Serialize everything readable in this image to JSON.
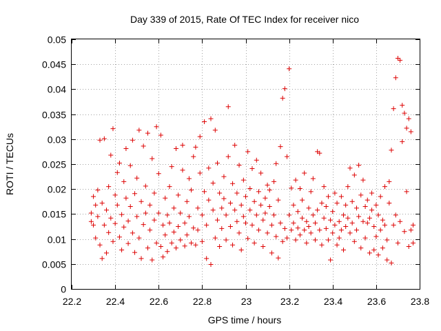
{
  "chart_data": {
    "type": "scatter",
    "title": "Day 339 of 2015, Rate Of TEC Index for receiver nico",
    "xlabel": "GPS time / hours",
    "ylabel": "ROTI / TECUs",
    "xlim": [
      22.2,
      23.8
    ],
    "ylim": [
      0,
      0.05
    ],
    "xticks": [
      "22.2",
      "22.4",
      "22.6",
      "22.8",
      "23",
      "23.2",
      "23.4",
      "23.6",
      "23.8"
    ],
    "yticks": [
      "0",
      "0.005",
      "0.01",
      "0.015",
      "0.02",
      "0.025",
      "0.03",
      "0.035",
      "0.04",
      "0.045",
      "0.05"
    ],
    "grid": true,
    "marker": "plus",
    "color": "#dd0000",
    "series": [
      {
        "values": [
          [
            22.29,
            0.0152
          ],
          [
            22.29,
            0.0135
          ],
          [
            22.3,
            0.0185
          ],
          [
            22.3,
            0.0128
          ],
          [
            22.31,
            0.0168
          ],
          [
            22.31,
            0.0102
          ],
          [
            22.32,
            0.0198
          ],
          [
            22.32,
            0.0145
          ],
          [
            22.33,
            0.0088
          ],
          [
            22.33,
            0.0298
          ],
          [
            22.34,
            0.0172
          ],
          [
            22.34,
            0.0061
          ],
          [
            22.35,
            0.0128
          ],
          [
            22.35,
            0.0301
          ],
          [
            22.36,
            0.0158
          ],
          [
            22.36,
            0.0072
          ],
          [
            22.37,
            0.0205
          ],
          [
            22.37,
            0.0113
          ],
          [
            22.38,
            0.0268
          ],
          [
            22.38,
            0.0142
          ],
          [
            22.39,
            0.0321
          ],
          [
            22.39,
            0.0095
          ],
          [
            22.4,
            0.0188
          ],
          [
            22.4,
            0.0131
          ],
          [
            22.41,
            0.0233
          ],
          [
            22.41,
            0.0168
          ],
          [
            22.42,
            0.0104
          ],
          [
            22.42,
            0.0252
          ],
          [
            22.43,
            0.0149
          ],
          [
            22.43,
            0.0078
          ],
          [
            22.44,
            0.0215
          ],
          [
            22.44,
            0.0124
          ],
          [
            22.45,
            0.0182
          ],
          [
            22.45,
            0.0281
          ],
          [
            22.46,
            0.0136
          ],
          [
            22.46,
            0.0091
          ],
          [
            22.47,
            0.0247
          ],
          [
            22.47,
            0.0165
          ],
          [
            22.48,
            0.0112
          ],
          [
            22.48,
            0.0298
          ],
          [
            22.49,
            0.0191
          ],
          [
            22.49,
            0.0073
          ],
          [
            22.5,
            0.0145
          ],
          [
            22.5,
            0.0222
          ],
          [
            22.51,
            0.0318
          ],
          [
            22.51,
            0.0102
          ],
          [
            22.52,
            0.0175
          ],
          [
            22.52,
            0.0061
          ],
          [
            22.53,
            0.0286
          ],
          [
            22.53,
            0.0129
          ],
          [
            22.54,
            0.0206
          ],
          [
            22.54,
            0.0152
          ],
          [
            22.55,
            0.0082
          ],
          [
            22.55,
            0.0312
          ],
          [
            22.56,
            0.0168
          ],
          [
            22.56,
            0.0118
          ],
          [
            22.57,
            0.0261
          ],
          [
            22.57,
            0.0058
          ],
          [
            22.58,
            0.0192
          ],
          [
            22.58,
            0.0138
          ],
          [
            22.59,
            0.0325
          ],
          [
            22.59,
            0.0092
          ],
          [
            22.6,
            0.0152
          ],
          [
            22.6,
            0.0231
          ],
          [
            22.61,
            0.0308
          ],
          [
            22.61,
            0.0085
          ],
          [
            22.62,
            0.0128
          ],
          [
            22.62,
            0.0064
          ],
          [
            22.63,
            0.0182
          ],
          [
            22.63,
            0.0108
          ],
          [
            22.64,
            0.0148
          ],
          [
            22.64,
            0.0075
          ],
          [
            22.65,
            0.0205
          ],
          [
            22.65,
            0.0132
          ],
          [
            22.66,
            0.0092
          ],
          [
            22.66,
            0.0245
          ],
          [
            22.67,
            0.0162
          ],
          [
            22.67,
            0.0114
          ],
          [
            22.68,
            0.0281
          ],
          [
            22.68,
            0.0082
          ],
          [
            22.69,
            0.0188
          ],
          [
            22.69,
            0.0125
          ],
          [
            22.7,
            0.0152
          ],
          [
            22.7,
            0.0098
          ],
          [
            22.71,
            0.0238
          ],
          [
            22.71,
            0.0288
          ],
          [
            22.72,
            0.0132
          ],
          [
            22.72,
            0.0086
          ],
          [
            22.73,
            0.0175
          ],
          [
            22.73,
            0.0108
          ],
          [
            22.74,
            0.0221
          ],
          [
            22.74,
            0.0145
          ],
          [
            22.75,
            0.0092
          ],
          [
            22.75,
            0.0198
          ],
          [
            22.76,
            0.0265
          ],
          [
            22.76,
            0.0122
          ],
          [
            22.77,
            0.0284
          ],
          [
            22.77,
            0.0088
          ],
          [
            22.78,
            0.0162
          ],
          [
            22.78,
            0.0118
          ],
          [
            22.79,
            0.0232
          ],
          [
            22.79,
            0.0305
          ],
          [
            22.8,
            0.0148
          ],
          [
            22.8,
            0.0095
          ],
          [
            22.81,
            0.0195
          ],
          [
            22.81,
            0.0335
          ],
          [
            22.82,
            0.0128
          ],
          [
            22.82,
            0.0061
          ],
          [
            22.83,
            0.0242
          ],
          [
            22.83,
            0.0178
          ],
          [
            22.84,
            0.0341
          ],
          [
            22.84,
            0.0049
          ],
          [
            22.85,
            0.0158
          ],
          [
            22.85,
            0.0212
          ],
          [
            22.86,
            0.0318
          ],
          [
            22.86,
            0.0102
          ],
          [
            22.87,
            0.0252
          ],
          [
            22.87,
            0.0138
          ],
          [
            22.88,
            0.0192
          ],
          [
            22.88,
            0.0085
          ],
          [
            22.89,
            0.0162
          ],
          [
            22.89,
            0.0121
          ],
          [
            22.9,
            0.0225
          ],
          [
            22.9,
            0.0181
          ],
          [
            22.91,
            0.0148
          ],
          [
            22.91,
            0.0098
          ],
          [
            22.92,
            0.0265
          ],
          [
            22.92,
            0.0365
          ],
          [
            22.93,
            0.0172
          ],
          [
            22.93,
            0.0125
          ],
          [
            22.94,
            0.0211
          ],
          [
            22.94,
            0.0088
          ],
          [
            22.95,
            0.0158
          ],
          [
            22.95,
            0.0288
          ],
          [
            22.96,
            0.0135
          ],
          [
            22.96,
            0.0192
          ],
          [
            22.97,
            0.0248
          ],
          [
            22.97,
            0.0112
          ],
          [
            22.98,
            0.0168
          ],
          [
            22.98,
            0.0078
          ],
          [
            22.99,
            0.0145
          ],
          [
            22.99,
            0.0218
          ],
          [
            23,
            0.0185
          ],
          [
            23,
            0.0132
          ],
          [
            23.01,
            0.0275
          ],
          [
            23.01,
            0.0101
          ],
          [
            23.02,
            0.0158
          ],
          [
            23.02,
            0.0201
          ],
          [
            23.03,
            0.0128
          ],
          [
            23.03,
            0.0241
          ],
          [
            23.04,
            0.0175
          ],
          [
            23.04,
            0.0092
          ],
          [
            23.05,
            0.0148
          ],
          [
            23.05,
            0.0258
          ],
          [
            23.06,
            0.0195
          ],
          [
            23.06,
            0.0118
          ],
          [
            23.07,
            0.0168
          ],
          [
            23.07,
            0.0232
          ],
          [
            23.08,
            0.0138
          ],
          [
            23.08,
            0.0085
          ],
          [
            23.09,
            0.0182
          ],
          [
            23.09,
            0.0152
          ],
          [
            23.1,
            0.0208
          ],
          [
            23.1,
            0.0112
          ],
          [
            23.11,
            0.0165
          ],
          [
            23.11,
            0.0198
          ],
          [
            23.12,
            0.0128
          ],
          [
            23.12,
            0.0072
          ],
          [
            23.13,
            0.0215
          ],
          [
            23.13,
            0.0148
          ],
          [
            23.14,
            0.0105
          ],
          [
            23.14,
            0.0251
          ],
          [
            23.15,
            0.0178
          ],
          [
            23.15,
            0.0062
          ],
          [
            23.16,
            0.0132
          ],
          [
            23.16,
            0.0285
          ],
          [
            23.17,
            0.0095
          ],
          [
            23.17,
            0.0382
          ],
          [
            23.18,
            0.0121
          ],
          [
            23.18,
            0.0401
          ],
          [
            23.19,
            0.0265
          ],
          [
            23.19,
            0.0102
          ],
          [
            23.2,
            0.0441
          ],
          [
            23.2,
            0.0148
          ],
          [
            23.21,
            0.0202
          ],
          [
            23.21,
            0.0118
          ],
          [
            23.22,
            0.0168
          ],
          [
            23.22,
            0.0132
          ],
          [
            23.23,
            0.0218
          ],
          [
            23.23,
            0.0098
          ],
          [
            23.24,
            0.0155
          ],
          [
            23.24,
            0.0122
          ],
          [
            23.25,
            0.0201
          ],
          [
            23.25,
            0.0108
          ],
          [
            23.26,
            0.0142
          ],
          [
            23.26,
            0.0178
          ],
          [
            23.27,
            0.0118
          ],
          [
            23.27,
            0.0232
          ],
          [
            23.28,
            0.0135
          ],
          [
            23.28,
            0.0092
          ],
          [
            23.29,
            0.0162
          ],
          [
            23.29,
            0.0125
          ],
          [
            23.3,
            0.0195
          ],
          [
            23.3,
            0.0112
          ],
          [
            23.31,
            0.0148
          ],
          [
            23.31,
            0.0221
          ],
          [
            23.32,
            0.0132
          ],
          [
            23.32,
            0.0098
          ],
          [
            23.33,
            0.0275
          ],
          [
            23.33,
            0.0158
          ],
          [
            23.34,
            0.0118
          ],
          [
            23.34,
            0.0272
          ],
          [
            23.35,
            0.0172
          ],
          [
            23.35,
            0.0088
          ],
          [
            23.36,
            0.0142
          ],
          [
            23.36,
            0.0205
          ],
          [
            23.37,
            0.0121
          ],
          [
            23.37,
            0.0165
          ],
          [
            23.38,
            0.0098
          ],
          [
            23.38,
            0.0185
          ],
          [
            23.39,
            0.0058
          ],
          [
            23.39,
            0.0138
          ],
          [
            23.4,
            0.0112
          ],
          [
            23.4,
            0.0155
          ],
          [
            23.41,
            0.0192
          ],
          [
            23.41,
            0.0128
          ],
          [
            23.42,
            0.0088
          ],
          [
            23.42,
            0.0172
          ],
          [
            23.43,
            0.0135
          ],
          [
            23.43,
            0.0102
          ],
          [
            23.44,
            0.0185
          ],
          [
            23.44,
            0.0118
          ],
          [
            23.45,
            0.0148
          ],
          [
            23.45,
            0.0078
          ],
          [
            23.46,
            0.0168
          ],
          [
            23.46,
            0.0125
          ],
          [
            23.47,
            0.0205
          ],
          [
            23.47,
            0.0142
          ],
          [
            23.48,
            0.0242
          ],
          [
            23.48,
            0.0112
          ],
          [
            23.49,
            0.0175
          ],
          [
            23.49,
            0.0132
          ],
          [
            23.5,
            0.0228
          ],
          [
            23.5,
            0.0095
          ],
          [
            23.51,
            0.0162
          ],
          [
            23.51,
            0.0118
          ],
          [
            23.52,
            0.0248
          ],
          [
            23.52,
            0.0145
          ],
          [
            23.53,
            0.0188
          ],
          [
            23.53,
            0.0082
          ],
          [
            23.54,
            0.0135
          ],
          [
            23.54,
            0.0218
          ],
          [
            23.55,
            0.0165
          ],
          [
            23.55,
            0.0102
          ],
          [
            23.56,
            0.0178
          ],
          [
            23.56,
            0.0132
          ],
          [
            23.57,
            0.0142
          ],
          [
            23.57,
            0.0072
          ],
          [
            23.58,
            0.0158
          ],
          [
            23.58,
            0.0192
          ],
          [
            23.59,
            0.0125
          ],
          [
            23.59,
            0.0078
          ],
          [
            23.6,
            0.0168
          ],
          [
            23.6,
            0.0105
          ],
          [
            23.61,
            0.0148
          ],
          [
            23.61,
            0.0068
          ],
          [
            23.62,
            0.0185
          ],
          [
            23.62,
            0.0118
          ],
          [
            23.63,
            0.0138
          ],
          [
            23.63,
            0.0082
          ],
          [
            23.64,
            0.0205
          ],
          [
            23.64,
            0.0128
          ],
          [
            23.65,
            0.0098
          ],
          [
            23.65,
            0.0058
          ],
          [
            23.66,
            0.0172
          ],
          [
            23.66,
            0.0215
          ],
          [
            23.67,
            0.0278
          ],
          [
            23.67,
            0.0052
          ],
          [
            23.68,
            0.0361
          ],
          [
            23.68,
            0.0128
          ],
          [
            23.69,
            0.0423
          ],
          [
            23.69,
            0.0148
          ],
          [
            23.7,
            0.0462
          ],
          [
            23.7,
            0.0092
          ],
          [
            23.71,
            0.0458
          ],
          [
            23.71,
            0.0135
          ],
          [
            23.72,
            0.0295
          ],
          [
            23.72,
            0.0368
          ],
          [
            23.73,
            0.0352
          ],
          [
            23.73,
            0.0115
          ],
          [
            23.74,
            0.0195
          ],
          [
            23.74,
            0.0322
          ],
          [
            23.75,
            0.0341
          ],
          [
            23.75,
            0.0085
          ],
          [
            23.76,
            0.0315
          ],
          [
            23.76,
            0.0118
          ],
          [
            23.77,
            0.0128
          ],
          [
            23.77,
            0.0092
          ]
        ]
      }
    ]
  }
}
